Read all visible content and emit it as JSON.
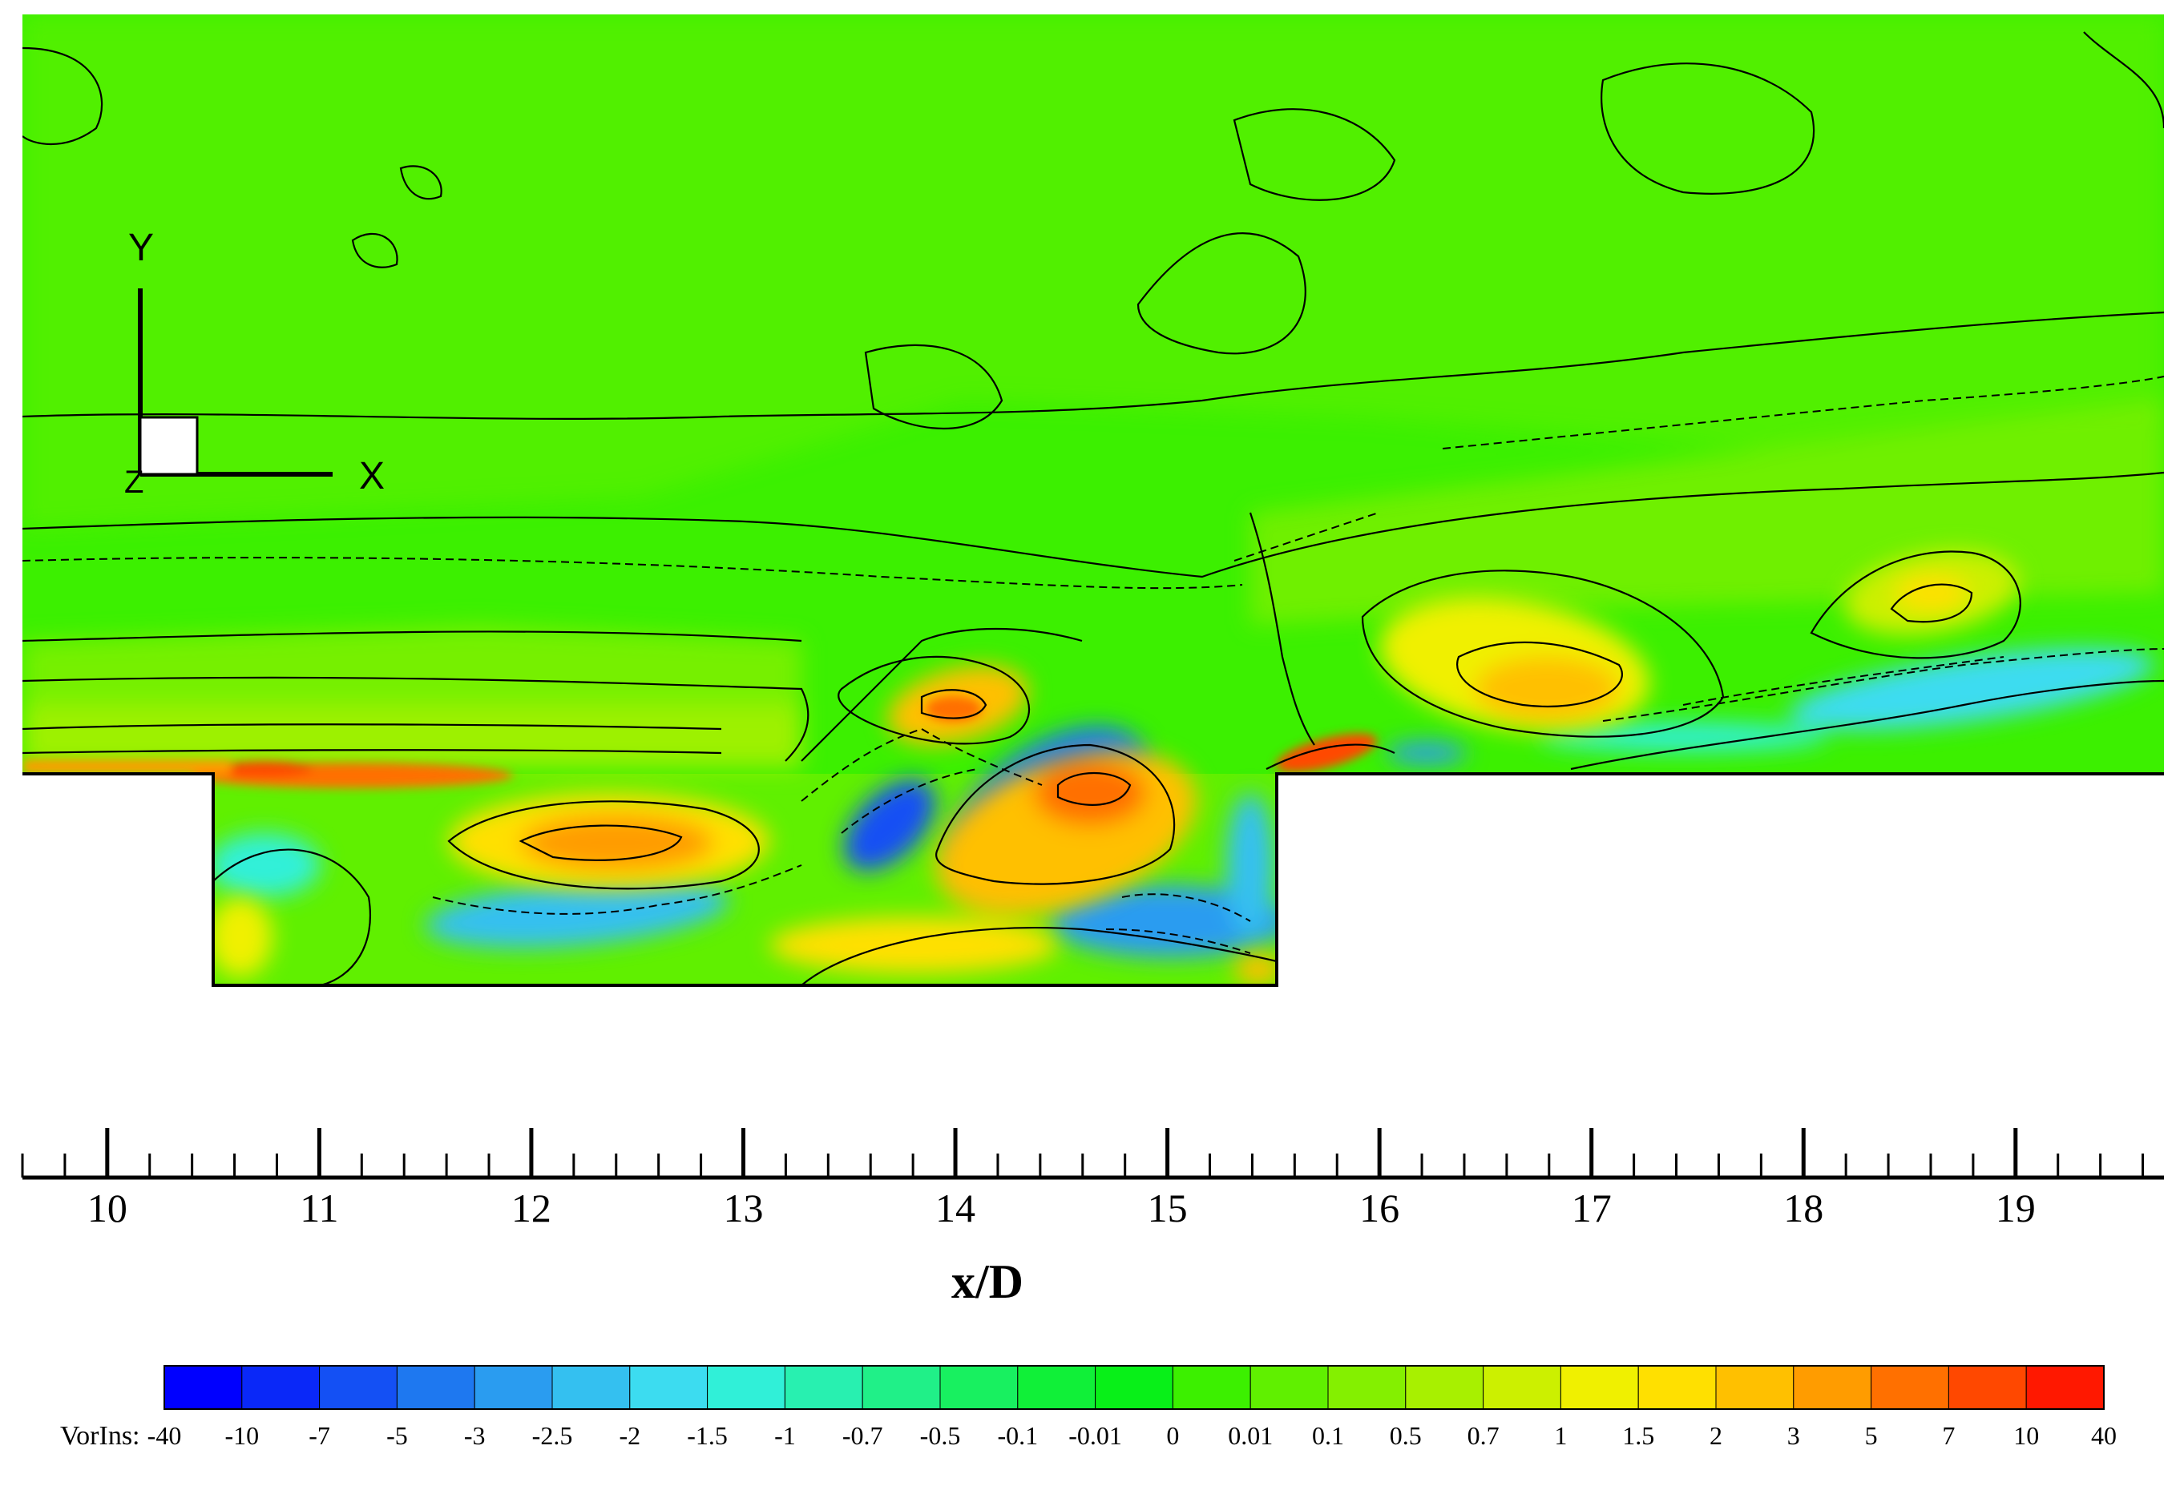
{
  "chart_data": {
    "type": "heatmap",
    "title": "",
    "xlabel": "x/D",
    "ylabel": "",
    "variable_name": "VorIns:",
    "x_range": [
      9.6,
      19.7
    ],
    "x_ticks": [
      "10",
      "11",
      "12",
      "13",
      "14",
      "15",
      "16",
      "17",
      "18",
      "19"
    ],
    "cavity": {
      "x_start": 10.5,
      "x_end": 15.5
    },
    "colorbar": {
      "levels": [
        "-40",
        "-10",
        "-7",
        "-5",
        "-3",
        "-2.5",
        "-2",
        "-1.5",
        "-1",
        "-0.7",
        "-0.5",
        "-0.1",
        "-0.01",
        "0",
        "0.01",
        "0.1",
        "0.5",
        "0.7",
        "1",
        "1.5",
        "2",
        "3",
        "5",
        "7",
        "10",
        "40"
      ],
      "colors": [
        "#0000ff",
        "#0a28f8",
        "#1450f4",
        "#1e78f0",
        "#2a9cf0",
        "#34c0f0",
        "#3cdcf0",
        "#30f0d8",
        "#28f0b0",
        "#20f088",
        "#18f060",
        "#10f038",
        "#08f018",
        "#3cf000",
        "#60f000",
        "#84f000",
        "#a8f000",
        "#ccf000",
        "#f0f000",
        "#ffe000",
        "#ffc000",
        "#ff9c00",
        "#ff7000",
        "#ff4800",
        "#ff1800"
      ]
    },
    "axis_triad": {
      "labels": [
        "Y",
        "X",
        "Z"
      ]
    },
    "grid": false,
    "legend": "bottom"
  },
  "colors": {
    "background": "#3cf000",
    "axis": "#000000"
  }
}
